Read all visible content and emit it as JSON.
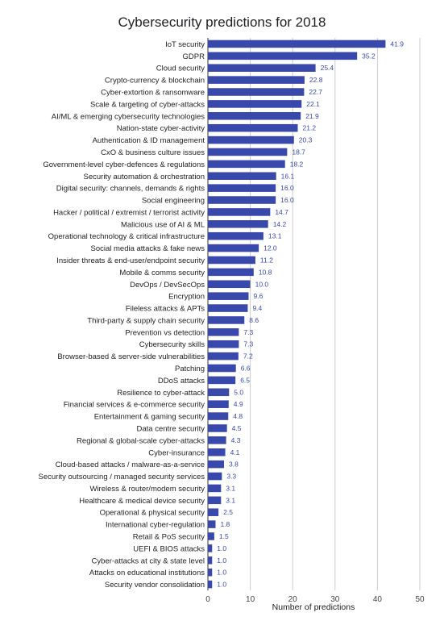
{
  "chart_data": {
    "type": "bar",
    "orientation": "horizontal",
    "title": "Cybersecurity predictions for 2018",
    "xlabel": "Number of predictions",
    "ylabel": "",
    "xlim": [
      0,
      50
    ],
    "x_ticks": [
      0,
      10,
      20,
      30,
      40,
      50
    ],
    "grid": true,
    "legend": "none",
    "bar_color": "#3949ab",
    "label_color": "#3949ab",
    "categories": [
      "IoT security",
      "GDPR",
      "Cloud security",
      "Crypto-currency & blockchain",
      "Cyber-extortion & ransomware",
      "Scale & targeting of cyber-attacks",
      "AI/ML & emerging cybersecurity technologies",
      "Nation-state cyber-activity",
      "Authentication & ID management",
      "CxO & business culture issues",
      "Government-level cyber-defences & regulations",
      "Security automation & orchestration",
      "Digital security: channels, demands & rights",
      "Social engineering",
      "Hacker / political / extremist / terrorist activity",
      "Malicious use of AI & ML",
      "Operational technology & critical infrastructure",
      "Social media attacks & fake news",
      "Insider threats & end-user/endpoint security",
      "Mobile & comms security",
      "DevOps / DevSecOps",
      "Encryption",
      "Fileless attacks & APTs",
      "Third-party & supply chain security",
      "Prevention vs detection",
      "Cybersecurity skills",
      "Browser-based & server-side vulnerabilities",
      "Patching",
      "DDoS attacks",
      "Resilience to cyber-attack",
      "Financial services & e-commerce security",
      "Entertainment & gaming security",
      "Data centre security",
      "Regional & global-scale cyber-attacks",
      "Cyber-insurance",
      "Cloud-based attacks / malware-as-a-service",
      "Security outsourcing / managed security services",
      "Wireless & router/modem security",
      "Healthcare & medical device security",
      "Operational & physical security",
      "International cyber-regulation",
      "Retail & PoS security",
      "UEFI & BIOS attacks",
      "Cyber-attacks at city & state level",
      "Attacks on educational institutions",
      "Security vendor consolidation"
    ],
    "values": [
      41.9,
      35.2,
      25.4,
      22.8,
      22.7,
      22.1,
      21.9,
      21.2,
      20.3,
      18.7,
      18.2,
      16.1,
      16.0,
      16.0,
      14.7,
      14.2,
      13.1,
      12.0,
      11.2,
      10.8,
      10.0,
      9.6,
      9.4,
      8.6,
      7.3,
      7.3,
      7.2,
      6.6,
      6.5,
      5.0,
      4.9,
      4.8,
      4.5,
      4.3,
      4.1,
      3.8,
      3.3,
      3.1,
      3.1,
      2.5,
      1.8,
      1.5,
      1.0,
      1.0,
      1.0,
      1.0
    ],
    "value_labels": [
      "41.9",
      "35.2",
      "25.4",
      "22.8",
      "22.7",
      "22.1",
      "21.9",
      "21.2",
      "20.3",
      "18.7",
      "18.2",
      "16.1",
      "16.0",
      "16.0",
      "14.7",
      "14.2",
      "13.1",
      "12.0",
      "11.2",
      "10.8",
      "10.0",
      "9.6",
      "9.4",
      "8.6",
      "7.3",
      "7.3",
      "7.2",
      "6.6",
      "6.5",
      "5.0",
      "4.9",
      "4.8",
      "4.5",
      "4.3",
      "4.1",
      "3.8",
      "3.3",
      "3.1",
      "3.1",
      "2.5",
      "1.8",
      "1.5",
      "1.0",
      "1.0",
      "1.0",
      "1.0"
    ]
  }
}
